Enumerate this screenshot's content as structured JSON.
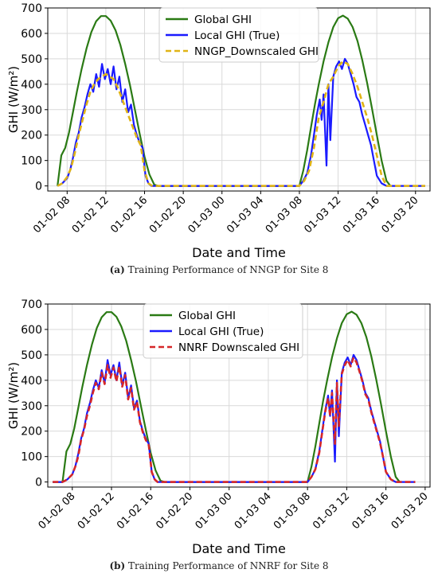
{
  "colors": {
    "global": "#2a7a14",
    "local": "#1a1aff",
    "nngp": "#e0b416",
    "nnrf": "#d62728",
    "grid": "#d9d9d9",
    "axis": "#000000"
  },
  "captions": [
    {
      "letter": "(a)",
      "text": " Training Performance of NNGP for Site 8"
    },
    {
      "letter": "(b)",
      "text": " Training Performance of NNRF for Site 8"
    }
  ],
  "chart_data": [
    {
      "type": "line",
      "panel": "a",
      "xlabel": "Date and Time",
      "ylabel": "GHI (W/m²)",
      "ylim": [
        -20,
        700
      ],
      "yticks": [
        0,
        100,
        200,
        300,
        400,
        500,
        600,
        700
      ],
      "x_unit": "hours from 01-02 00:00",
      "xlim": [
        6,
        45.5
      ],
      "xticks": [
        {
          "x": 8,
          "label": "01-02 08"
        },
        {
          "x": 12,
          "label": "01-02 12"
        },
        {
          "x": 16,
          "label": "01-02 16"
        },
        {
          "x": 20,
          "label": "01-02 20"
        },
        {
          "x": 24,
          "label": "01-03 00"
        },
        {
          "x": 28,
          "label": "01-03 04"
        },
        {
          "x": 32,
          "label": "01-03 08"
        },
        {
          "x": 36,
          "label": "01-03 12"
        },
        {
          "x": 40,
          "label": "01-03 16"
        },
        {
          "x": 44,
          "label": "01-03 20"
        }
      ],
      "grid": true,
      "legend": "top-center",
      "series": [
        {
          "name": "Global GHI",
          "style": "solid",
          "color_key": "global",
          "x": [
            7.0,
            7.4,
            7.8,
            8.2,
            8.6,
            9.0,
            9.5,
            10.0,
            10.5,
            11.0,
            11.5,
            12.0,
            12.5,
            13.0,
            13.5,
            14.0,
            14.5,
            15.0,
            15.5,
            16.0,
            16.5,
            17.0,
            17.4,
            32.0,
            32.4,
            32.8,
            33.2,
            33.6,
            34.0,
            34.5,
            35.0,
            35.5,
            36.0,
            36.5,
            37.0,
            37.5,
            38.0,
            38.5,
            39.0,
            39.5,
            40.0,
            40.5,
            41.0,
            41.4
          ],
          "y": [
            0,
            120,
            150,
            210,
            290,
            370,
            460,
            540,
            605,
            648,
            668,
            668,
            650,
            612,
            555,
            480,
            395,
            300,
            205,
            115,
            45,
            5,
            0,
            0,
            60,
            140,
            230,
            320,
            400,
            490,
            565,
            625,
            660,
            670,
            658,
            625,
            570,
            495,
            405,
            305,
            200,
            100,
            20,
            0
          ]
        },
        {
          "name": "Local GHI (True)",
          "style": "solid",
          "color_key": "local",
          "x": [
            7.0,
            7.5,
            8.0,
            8.3,
            8.6,
            8.9,
            9.2,
            9.5,
            9.8,
            10.1,
            10.4,
            10.7,
            11.0,
            11.3,
            11.6,
            11.9,
            12.2,
            12.5,
            12.8,
            13.1,
            13.4,
            13.7,
            14.0,
            14.3,
            14.6,
            14.9,
            15.2,
            15.5,
            15.8,
            16.1,
            16.4,
            16.7,
            17.0,
            32.0,
            32.4,
            32.8,
            33.2,
            33.5,
            33.8,
            34.1,
            34.3,
            34.5,
            34.8,
            35.0,
            35.2,
            35.5,
            35.8,
            36.1,
            36.4,
            36.7,
            37.0,
            37.3,
            37.6,
            37.9,
            38.2,
            38.5,
            38.8,
            39.1,
            39.4,
            39.7,
            40.0,
            40.5,
            41.0,
            45.0
          ],
          "y": [
            0,
            10,
            30,
            60,
            110,
            170,
            210,
            270,
            310,
            360,
            400,
            370,
            440,
            390,
            480,
            420,
            460,
            400,
            470,
            380,
            430,
            330,
            380,
            290,
            320,
            240,
            200,
            170,
            150,
            40,
            10,
            0,
            0,
            0,
            20,
            50,
            120,
            200,
            280,
            340,
            260,
            360,
            80,
            400,
            180,
            430,
            470,
            490,
            460,
            500,
            480,
            440,
            400,
            350,
            330,
            280,
            240,
            200,
            160,
            100,
            40,
            10,
            0,
            0
          ]
        },
        {
          "name": "NNGP_Downscaled GHI",
          "style": "dashed",
          "color_key": "nngp",
          "x": [
            7.0,
            7.5,
            8.0,
            8.4,
            8.8,
            9.2,
            9.6,
            10.0,
            10.4,
            10.8,
            11.2,
            11.6,
            12.0,
            12.4,
            12.8,
            13.2,
            13.6,
            14.0,
            14.4,
            14.8,
            15.2,
            15.6,
            16.0,
            16.4,
            16.8,
            17.0,
            32.0,
            32.5,
            33.0,
            33.5,
            34.0,
            34.5,
            35.0,
            35.5,
            36.0,
            36.5,
            37.0,
            37.5,
            38.0,
            38.5,
            39.0,
            39.5,
            40.0,
            40.5,
            41.0,
            45.0
          ],
          "y": [
            0,
            10,
            35,
            70,
            130,
            200,
            260,
            320,
            370,
            400,
            420,
            430,
            440,
            430,
            420,
            390,
            350,
            310,
            270,
            230,
            190,
            160,
            60,
            10,
            0,
            0,
            0,
            20,
            60,
            150,
            270,
            330,
            400,
            430,
            470,
            490,
            480,
            440,
            390,
            330,
            270,
            200,
            120,
            40,
            0,
            0
          ]
        }
      ]
    },
    {
      "type": "line",
      "panel": "b",
      "xlabel": "Date and Time",
      "ylabel": "GHI (W/m²)",
      "ylim": [
        -20,
        700
      ],
      "yticks": [
        0,
        100,
        200,
        300,
        400,
        500,
        600,
        700
      ],
      "x_unit": "hours from 01-02 00:00",
      "xlim": [
        5.5,
        44.5
      ],
      "xticks": [
        {
          "x": 8,
          "label": "01-02 08"
        },
        {
          "x": 12,
          "label": "01-02 12"
        },
        {
          "x": 16,
          "label": "01-02 16"
        },
        {
          "x": 20,
          "label": "01-02 20"
        },
        {
          "x": 24,
          "label": "01-03 00"
        },
        {
          "x": 28,
          "label": "01-03 04"
        },
        {
          "x": 32,
          "label": "01-03 08"
        },
        {
          "x": 36,
          "label": "01-03 12"
        },
        {
          "x": 40,
          "label": "01-03 16"
        },
        {
          "x": 44,
          "label": "01-03 20"
        }
      ],
      "grid": true,
      "legend": "top-center",
      "series": [
        {
          "name": "Global GHI",
          "style": "solid",
          "color_key": "global",
          "x": [
            6.0,
            7.0,
            7.4,
            7.8,
            8.2,
            8.6,
            9.0,
            9.5,
            10.0,
            10.5,
            11.0,
            11.5,
            12.0,
            12.5,
            13.0,
            13.5,
            14.0,
            14.5,
            15.0,
            15.5,
            16.0,
            16.5,
            17.0,
            17.4,
            30.5,
            31.5,
            32.0,
            32.4,
            32.8,
            33.2,
            33.6,
            34.0,
            34.5,
            35.0,
            35.5,
            36.0,
            36.5,
            37.0,
            37.5,
            38.0,
            38.5,
            39.0,
            39.5,
            40.0,
            40.5,
            41.0,
            41.4
          ],
          "y": [
            0,
            0,
            120,
            150,
            210,
            290,
            370,
            460,
            540,
            605,
            648,
            668,
            668,
            650,
            612,
            555,
            480,
            395,
            300,
            205,
            115,
            45,
            5,
            0,
            0,
            0,
            0,
            60,
            140,
            230,
            320,
            400,
            490,
            565,
            625,
            660,
            670,
            658,
            625,
            570,
            495,
            405,
            305,
            200,
            100,
            20,
            0
          ]
        },
        {
          "name": "Local GHI (True)",
          "style": "solid",
          "color_key": "local",
          "x": [
            6.0,
            7.0,
            7.5,
            8.0,
            8.3,
            8.6,
            8.9,
            9.2,
            9.5,
            9.8,
            10.1,
            10.4,
            10.7,
            11.0,
            11.3,
            11.6,
            11.9,
            12.2,
            12.5,
            12.8,
            13.1,
            13.4,
            13.7,
            14.0,
            14.3,
            14.6,
            14.9,
            15.2,
            15.5,
            15.8,
            16.1,
            16.4,
            16.7,
            17.0,
            32.0,
            32.4,
            32.8,
            33.2,
            33.5,
            33.8,
            34.1,
            34.3,
            34.5,
            34.8,
            35.0,
            35.2,
            35.5,
            35.8,
            36.1,
            36.4,
            36.7,
            37.0,
            37.3,
            37.6,
            37.9,
            38.2,
            38.5,
            38.8,
            39.1,
            39.4,
            39.7,
            40.0,
            40.5,
            41.0,
            43.0
          ],
          "y": [
            0,
            0,
            10,
            30,
            60,
            110,
            170,
            210,
            270,
            310,
            360,
            400,
            370,
            440,
            390,
            480,
            420,
            460,
            400,
            470,
            380,
            430,
            330,
            380,
            290,
            320,
            240,
            200,
            170,
            150,
            40,
            10,
            0,
            0,
            0,
            20,
            50,
            120,
            200,
            280,
            340,
            260,
            360,
            80,
            400,
            180,
            430,
            470,
            490,
            460,
            500,
            480,
            440,
            400,
            350,
            330,
            280,
            240,
            200,
            160,
            100,
            40,
            10,
            0,
            0
          ]
        },
        {
          "name": "NNRF Downscaled GHI",
          "style": "dashed",
          "color_key": "nnrf",
          "x": [
            6.0,
            7.0,
            7.5,
            8.0,
            8.3,
            8.6,
            8.9,
            9.2,
            9.5,
            9.8,
            10.1,
            10.4,
            10.7,
            11.0,
            11.3,
            11.6,
            11.9,
            12.2,
            12.5,
            12.8,
            13.1,
            13.4,
            13.7,
            14.0,
            14.3,
            14.6,
            14.9,
            15.2,
            15.5,
            15.8,
            16.1,
            16.4,
            16.7,
            17.0,
            32.0,
            32.4,
            32.8,
            33.2,
            33.5,
            33.8,
            34.1,
            34.3,
            34.5,
            34.8,
            35.0,
            35.2,
            35.5,
            35.8,
            36.1,
            36.4,
            36.7,
            37.0,
            37.3,
            37.6,
            37.9,
            38.2,
            38.5,
            38.8,
            39.1,
            39.4,
            39.7,
            40.0,
            40.5,
            41.0,
            43.0
          ],
          "y": [
            0,
            0,
            10,
            30,
            60,
            100,
            165,
            205,
            260,
            300,
            350,
            390,
            365,
            430,
            385,
            460,
            410,
            450,
            395,
            455,
            375,
            420,
            325,
            370,
            285,
            315,
            235,
            195,
            165,
            145,
            40,
            10,
            0,
            0,
            0,
            20,
            50,
            115,
            195,
            275,
            330,
            260,
            350,
            150,
            390,
            220,
            425,
            460,
            480,
            455,
            490,
            470,
            435,
            395,
            345,
            325,
            275,
            235,
            195,
            155,
            100,
            40,
            10,
            0,
            0
          ]
        }
      ]
    }
  ]
}
